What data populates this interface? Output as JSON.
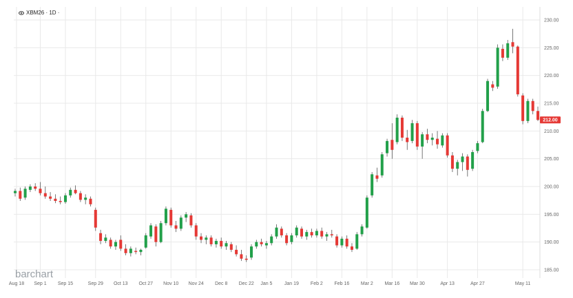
{
  "header": {
    "symbol_label": "XBM26 · 1D ·",
    "eye_icon": "eye-icon"
  },
  "brand": {
    "name": "barchart"
  },
  "colors": {
    "up": "#22a04a",
    "down": "#e53935",
    "grid": "#e9e9e9",
    "axis_text": "#666666",
    "price_badge": "#e53935"
  },
  "last_price": {
    "label": "212.00",
    "value": 212.0
  },
  "chart_data": {
    "type": "candlestick",
    "y_axis": {
      "min": 185,
      "max": 230,
      "ticks": [
        185,
        190,
        195,
        200,
        205,
        210,
        215,
        220,
        225,
        230
      ],
      "tick_labels": [
        "185.00",
        "190.00",
        "195.00",
        "200.00",
        "205.00",
        "210.00",
        "215.00",
        "220.00",
        "225.00",
        "230.00"
      ],
      "position": "right"
    },
    "x_axis": {
      "labels": [
        "Aug 18",
        "Sep 1",
        "Sep 15",
        "Sep 29",
        "Oct 13",
        "Oct 27",
        "Nov 10",
        "Nov 24",
        "Dec 8",
        "Dec 22",
        "Jan 5",
        "Jan 19",
        "Feb 2",
        "Feb 16",
        "Mar 2",
        "Mar 16",
        "Mar 30",
        "Apr 13",
        "Apr 27",
        "May 11"
      ]
    },
    "grid": true,
    "series": [
      {
        "date": "Aug 18",
        "o": 198.8,
        "h": 199.6,
        "l": 198.2,
        "c": 199.2
      },
      {
        "date": "Aug 20",
        "o": 199.2,
        "h": 199.8,
        "l": 197.4,
        "c": 197.8
      },
      {
        "date": "Aug 22",
        "o": 198.0,
        "h": 200.0,
        "l": 197.6,
        "c": 199.6
      },
      {
        "date": "Aug 26",
        "o": 199.4,
        "h": 200.4,
        "l": 199.0,
        "c": 200.0
      },
      {
        "date": "Aug 28",
        "o": 200.0,
        "h": 200.6,
        "l": 199.2,
        "c": 199.6
      },
      {
        "date": "Sep 1",
        "o": 199.6,
        "h": 200.8,
        "l": 198.4,
        "c": 198.8
      },
      {
        "date": "Sep 3",
        "o": 198.8,
        "h": 200.0,
        "l": 197.8,
        "c": 198.2
      },
      {
        "date": "Sep 5",
        "o": 198.2,
        "h": 199.0,
        "l": 197.4,
        "c": 197.8
      },
      {
        "date": "Sep 9",
        "o": 197.8,
        "h": 198.6,
        "l": 197.0,
        "c": 197.4
      },
      {
        "date": "Sep 11",
        "o": 197.4,
        "h": 198.2,
        "l": 196.8,
        "c": 197.2
      },
      {
        "date": "Sep 15",
        "o": 197.2,
        "h": 198.8,
        "l": 196.9,
        "c": 198.4
      },
      {
        "date": "Sep 17",
        "o": 198.4,
        "h": 199.8,
        "l": 198.0,
        "c": 199.4
      },
      {
        "date": "Sep 19",
        "o": 199.4,
        "h": 200.2,
        "l": 198.6,
        "c": 198.8
      },
      {
        "date": "Sep 23",
        "o": 198.8,
        "h": 199.2,
        "l": 197.2,
        "c": 197.6
      },
      {
        "date": "Sep 25",
        "o": 197.6,
        "h": 198.6,
        "l": 196.8,
        "c": 198.0
      },
      {
        "date": "Sep 27",
        "o": 197.8,
        "h": 198.2,
        "l": 196.4,
        "c": 196.8
      },
      {
        "date": "Sep 29",
        "o": 195.8,
        "h": 196.2,
        "l": 192.0,
        "c": 192.6
      },
      {
        "date": "Oct 1",
        "o": 191.6,
        "h": 192.2,
        "l": 189.6,
        "c": 190.2
      },
      {
        "date": "Oct 3",
        "o": 190.2,
        "h": 191.4,
        "l": 189.8,
        "c": 190.8
      },
      {
        "date": "Oct 7",
        "o": 190.4,
        "h": 190.8,
        "l": 188.8,
        "c": 189.2
      },
      {
        "date": "Oct 9",
        "o": 189.2,
        "h": 190.4,
        "l": 188.6,
        "c": 190.0
      },
      {
        "date": "Oct 13",
        "o": 190.4,
        "h": 191.2,
        "l": 188.4,
        "c": 188.8
      },
      {
        "date": "Oct 15",
        "o": 188.8,
        "h": 189.6,
        "l": 187.6,
        "c": 188.0
      },
      {
        "date": "Oct 17",
        "o": 188.0,
        "h": 189.2,
        "l": 187.4,
        "c": 188.8
      },
      {
        "date": "Oct 21",
        "o": 188.4,
        "h": 189.0,
        "l": 187.8,
        "c": 188.2
      },
      {
        "date": "Oct 23",
        "o": 188.2,
        "h": 188.8,
        "l": 187.6,
        "c": 188.6
      },
      {
        "date": "Oct 27",
        "o": 189.0,
        "h": 191.6,
        "l": 188.8,
        "c": 191.2
      },
      {
        "date": "Oct 29",
        "o": 191.0,
        "h": 193.4,
        "l": 190.6,
        "c": 193.0
      },
      {
        "date": "Oct 31",
        "o": 192.8,
        "h": 193.2,
        "l": 189.2,
        "c": 190.0
      },
      {
        "date": "Nov 4",
        "o": 190.0,
        "h": 193.8,
        "l": 189.8,
        "c": 193.4
      },
      {
        "date": "Nov 6",
        "o": 193.4,
        "h": 196.4,
        "l": 193.0,
        "c": 196.0
      },
      {
        "date": "Nov 10",
        "o": 195.8,
        "h": 196.2,
        "l": 192.6,
        "c": 193.0
      },
      {
        "date": "Nov 12",
        "o": 193.0,
        "h": 193.8,
        "l": 191.8,
        "c": 192.4
      },
      {
        "date": "Nov 14",
        "o": 192.4,
        "h": 194.8,
        "l": 192.0,
        "c": 194.4
      },
      {
        "date": "Nov 18",
        "o": 194.4,
        "h": 195.4,
        "l": 193.6,
        "c": 195.0
      },
      {
        "date": "Nov 20",
        "o": 194.8,
        "h": 195.2,
        "l": 192.6,
        "c": 193.0
      },
      {
        "date": "Nov 24",
        "o": 193.0,
        "h": 193.4,
        "l": 190.4,
        "c": 191.0
      },
      {
        "date": "Nov 26",
        "o": 191.0,
        "h": 191.6,
        "l": 189.8,
        "c": 190.4
      },
      {
        "date": "Nov 28",
        "o": 190.4,
        "h": 191.2,
        "l": 189.6,
        "c": 190.8
      },
      {
        "date": "Dec 2",
        "o": 190.8,
        "h": 191.2,
        "l": 189.2,
        "c": 189.6
      },
      {
        "date": "Dec 4",
        "o": 189.6,
        "h": 190.6,
        "l": 189.0,
        "c": 190.2
      },
      {
        "date": "Dec 8",
        "o": 190.2,
        "h": 190.8,
        "l": 188.8,
        "c": 189.2
      },
      {
        "date": "Dec 10",
        "o": 189.2,
        "h": 190.2,
        "l": 188.6,
        "c": 189.8
      },
      {
        "date": "Dec 12",
        "o": 189.6,
        "h": 190.0,
        "l": 188.2,
        "c": 188.6
      },
      {
        "date": "Dec 16",
        "o": 188.6,
        "h": 189.4,
        "l": 187.4,
        "c": 187.8
      },
      {
        "date": "Dec 18",
        "o": 187.8,
        "h": 188.6,
        "l": 186.6,
        "c": 187.0
      },
      {
        "date": "Dec 22",
        "o": 187.0,
        "h": 187.6,
        "l": 186.4,
        "c": 186.8
      },
      {
        "date": "Dec 24",
        "o": 187.2,
        "h": 189.6,
        "l": 186.8,
        "c": 189.2
      },
      {
        "date": "Dec 29",
        "o": 189.2,
        "h": 190.4,
        "l": 188.8,
        "c": 190.0
      },
      {
        "date": "Dec 31",
        "o": 190.0,
        "h": 190.6,
        "l": 189.2,
        "c": 189.6
      },
      {
        "date": "Jan 5",
        "o": 189.4,
        "h": 190.2,
        "l": 188.8,
        "c": 189.8
      },
      {
        "date": "Jan 7",
        "o": 189.8,
        "h": 191.4,
        "l": 189.4,
        "c": 191.0
      },
      {
        "date": "Jan 9",
        "o": 191.0,
        "h": 193.2,
        "l": 190.6,
        "c": 192.6
      },
      {
        "date": "Jan 13",
        "o": 192.4,
        "h": 192.8,
        "l": 190.8,
        "c": 191.2
      },
      {
        "date": "Jan 15",
        "o": 191.2,
        "h": 191.6,
        "l": 189.4,
        "c": 189.8
      },
      {
        "date": "Jan 19",
        "o": 190.0,
        "h": 191.6,
        "l": 189.6,
        "c": 191.2
      },
      {
        "date": "Jan 21",
        "o": 191.2,
        "h": 193.0,
        "l": 190.8,
        "c": 192.6
      },
      {
        "date": "Jan 23",
        "o": 192.4,
        "h": 192.8,
        "l": 190.6,
        "c": 191.0
      },
      {
        "date": "Jan 27",
        "o": 191.0,
        "h": 192.2,
        "l": 190.4,
        "c": 191.8
      },
      {
        "date": "Jan 29",
        "o": 191.8,
        "h": 192.4,
        "l": 190.8,
        "c": 191.2
      },
      {
        "date": "Feb 2",
        "o": 191.2,
        "h": 192.4,
        "l": 190.8,
        "c": 192.0
      },
      {
        "date": "Feb 4",
        "o": 192.0,
        "h": 192.6,
        "l": 190.6,
        "c": 191.0
      },
      {
        "date": "Feb 6",
        "o": 191.0,
        "h": 191.8,
        "l": 190.2,
        "c": 191.4
      },
      {
        "date": "Feb 10",
        "o": 191.4,
        "h": 192.2,
        "l": 190.8,
        "c": 191.2
      },
      {
        "date": "Feb 12",
        "o": 191.0,
        "h": 191.4,
        "l": 189.0,
        "c": 189.4
      },
      {
        "date": "Feb 16",
        "o": 189.4,
        "h": 191.0,
        "l": 189.0,
        "c": 190.6
      },
      {
        "date": "Feb 18",
        "o": 190.6,
        "h": 191.2,
        "l": 188.8,
        "c": 189.2
      },
      {
        "date": "Feb 20",
        "o": 189.2,
        "h": 189.8,
        "l": 188.2,
        "c": 188.6
      },
      {
        "date": "Feb 24",
        "o": 188.8,
        "h": 191.8,
        "l": 188.6,
        "c": 191.4
      },
      {
        "date": "Feb 26",
        "o": 191.4,
        "h": 193.2,
        "l": 191.0,
        "c": 192.8
      },
      {
        "date": "Mar 2",
        "o": 192.6,
        "h": 198.4,
        "l": 192.4,
        "c": 198.0
      },
      {
        "date": "Mar 4",
        "o": 198.4,
        "h": 202.6,
        "l": 198.0,
        "c": 202.2
      },
      {
        "date": "Mar 6",
        "o": 202.0,
        "h": 203.4,
        "l": 200.8,
        "c": 201.4
      },
      {
        "date": "Mar 10",
        "o": 202.0,
        "h": 206.2,
        "l": 201.6,
        "c": 205.8
      },
      {
        "date": "Mar 12",
        "o": 206.0,
        "h": 208.6,
        "l": 205.4,
        "c": 208.2
      },
      {
        "date": "Mar 16",
        "o": 208.4,
        "h": 211.4,
        "l": 205.0,
        "c": 206.6
      },
      {
        "date": "Mar 18",
        "o": 208.0,
        "h": 213.0,
        "l": 207.6,
        "c": 212.4
      },
      {
        "date": "Mar 20",
        "o": 212.4,
        "h": 212.8,
        "l": 208.2,
        "c": 208.8
      },
      {
        "date": "Mar 24",
        "o": 208.8,
        "h": 210.2,
        "l": 206.6,
        "c": 208.0
      },
      {
        "date": "Mar 26",
        "o": 208.2,
        "h": 212.0,
        "l": 207.8,
        "c": 211.4
      },
      {
        "date": "Mar 30",
        "o": 211.4,
        "h": 211.8,
        "l": 206.6,
        "c": 207.2
      },
      {
        "date": "Apr 1",
        "o": 207.2,
        "h": 209.8,
        "l": 205.0,
        "c": 209.4
      },
      {
        "date": "Apr 3",
        "o": 209.4,
        "h": 210.4,
        "l": 207.8,
        "c": 208.4
      },
      {
        "date": "Apr 7",
        "o": 208.4,
        "h": 209.6,
        "l": 207.4,
        "c": 208.8
      },
      {
        "date": "Apr 9",
        "o": 208.6,
        "h": 210.0,
        "l": 206.8,
        "c": 207.6
      },
      {
        "date": "Apr 10",
        "o": 207.4,
        "h": 209.6,
        "l": 207.0,
        "c": 209.2
      },
      {
        "date": "Apr 13",
        "o": 209.2,
        "h": 209.6,
        "l": 205.2,
        "c": 205.6
      },
      {
        "date": "Apr 15",
        "o": 205.6,
        "h": 206.2,
        "l": 202.6,
        "c": 203.2
      },
      {
        "date": "Apr 17",
        "o": 203.2,
        "h": 204.8,
        "l": 202.0,
        "c": 204.4
      },
      {
        "date": "Apr 21",
        "o": 204.4,
        "h": 206.0,
        "l": 202.8,
        "c": 205.4
      },
      {
        "date": "Apr 22",
        "o": 205.4,
        "h": 205.8,
        "l": 201.8,
        "c": 203.0
      },
      {
        "date": "Apr 24",
        "o": 203.2,
        "h": 206.6,
        "l": 202.8,
        "c": 206.2
      },
      {
        "date": "Apr 27",
        "o": 206.4,
        "h": 208.2,
        "l": 206.0,
        "c": 207.8
      },
      {
        "date": "Apr 28",
        "o": 208.0,
        "h": 214.0,
        "l": 207.8,
        "c": 213.6
      },
      {
        "date": "Apr 30",
        "o": 213.6,
        "h": 219.4,
        "l": 213.4,
        "c": 219.0
      },
      {
        "date": "May 1",
        "o": 218.4,
        "h": 219.0,
        "l": 217.2,
        "c": 217.8
      },
      {
        "date": "May 4",
        "o": 218.0,
        "h": 225.6,
        "l": 217.6,
        "c": 225.0
      },
      {
        "date": "May 5",
        "o": 224.8,
        "h": 225.6,
        "l": 222.6,
        "c": 223.2
      },
      {
        "date": "May 6",
        "o": 223.2,
        "h": 226.4,
        "l": 222.8,
        "c": 225.8
      },
      {
        "date": "May 7",
        "o": 226.0,
        "h": 228.4,
        "l": 224.0,
        "c": 225.2
      },
      {
        "date": "May 8",
        "o": 225.2,
        "h": 225.4,
        "l": 216.2,
        "c": 216.6
      },
      {
        "date": "May 11",
        "o": 216.4,
        "h": 216.8,
        "l": 211.2,
        "c": 211.8
      },
      {
        "date": "May 12",
        "o": 211.8,
        "h": 215.8,
        "l": 211.4,
        "c": 215.4
      },
      {
        "date": "May 13",
        "o": 215.4,
        "h": 215.8,
        "l": 213.0,
        "c": 213.6
      },
      {
        "date": "May 14",
        "o": 213.6,
        "h": 214.4,
        "l": 211.8,
        "c": 212.0
      }
    ]
  }
}
